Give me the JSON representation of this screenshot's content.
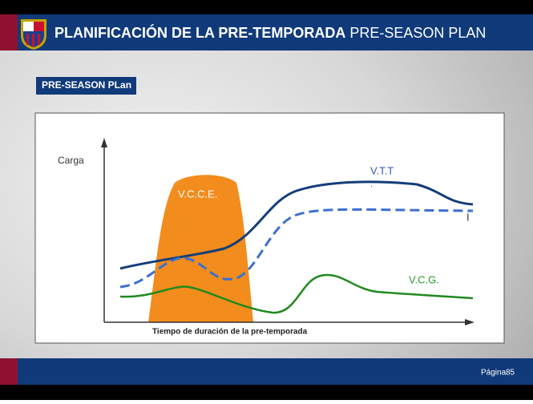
{
  "header": {
    "title_bold": "PLANIFICACIÓN DE LA PRE-TEMPORADA",
    "title_normal": "PRE-SEASON PLAN"
  },
  "section_label": "PRE-SEASON PLan",
  "diagram": {
    "y_label": "Carga",
    "x_label": "Tiempo de duración de la pre-temporada",
    "labels": {
      "vcce": "V.C.C.E.",
      "vtt": "V.T.T",
      "vtt_dot": ".",
      "dashed": "I",
      "vcg": "V.C.G."
    }
  },
  "footer": {
    "page_word": "Página",
    "page_number": "85"
  }
}
